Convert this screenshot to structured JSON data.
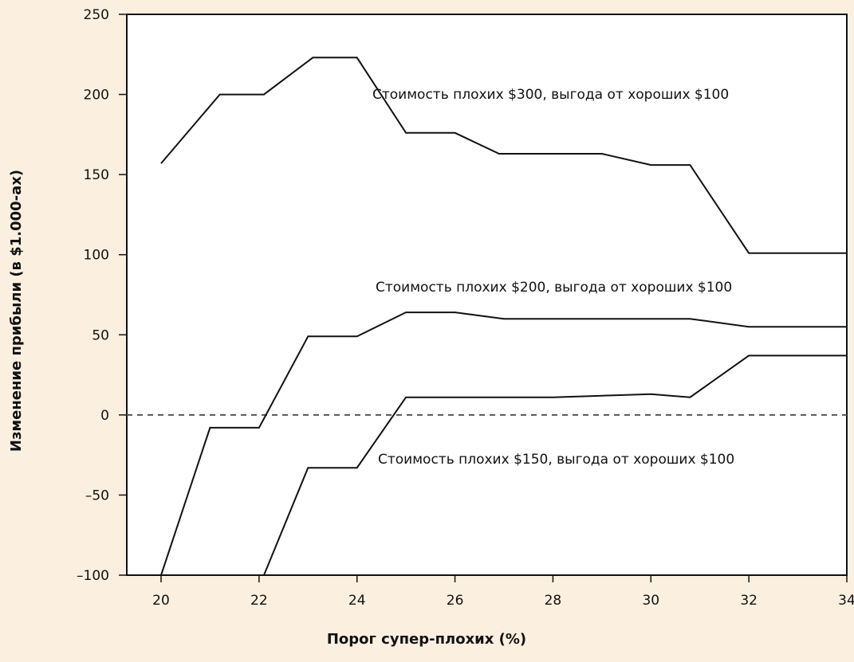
{
  "chart_data": {
    "type": "line",
    "title": "",
    "xlabel": "Порог супер-плохих (%)",
    "ylabel": "Изменение прибыли (в $1.000-ах)",
    "xlim": [
      19.3,
      34
    ],
    "ylim": [
      -100,
      250
    ],
    "xticks": [
      20,
      22,
      24,
      26,
      28,
      30,
      32,
      34
    ],
    "yticks": [
      -100,
      -50,
      0,
      50,
      100,
      150,
      200,
      250
    ],
    "ytick_labels": [
      "–100",
      "–50",
      "0",
      "50",
      "100",
      "150",
      "200",
      "250"
    ],
    "grid": false,
    "legend": "none",
    "reference_line": {
      "y": 0,
      "style": "dashed"
    },
    "colors": {
      "background": "#fbf0e0",
      "plot_background": "#ffffff",
      "line": "#111111",
      "reference": "#555555"
    },
    "series": [
      {
        "name": "Стоимость плохих $300, выгода от хороших $100",
        "x": [
          20,
          21.2,
          22.1,
          23.1,
          24,
          25,
          26,
          26.9,
          28,
          29,
          30,
          30.8,
          32,
          34
        ],
        "y": [
          157,
          200,
          200,
          223,
          223,
          176,
          176,
          163,
          163,
          163,
          156,
          156,
          101,
          101
        ]
      },
      {
        "name": "Стоимость плохих $200, выгода от хороших $100",
        "x": [
          20,
          21.0,
          22.0,
          23.0,
          24.0,
          25.0,
          26.0,
          27.0,
          28,
          29,
          30,
          30.8,
          32,
          34
        ],
        "y": [
          -100,
          -8,
          -8,
          49,
          49,
          64,
          64,
          60,
          60,
          60,
          60,
          60,
          55,
          55
        ]
      },
      {
        "name": "Стоимость плохих $150, выгода от хороших $100",
        "x": [
          22.1,
          23.0,
          24.0,
          25.0,
          26.0,
          27.0,
          28.0,
          29.0,
          30.0,
          30.8,
          32,
          34
        ],
        "y": [
          -100,
          -33,
          -33,
          11,
          11,
          11,
          11,
          12,
          13,
          11,
          37,
          37
        ]
      }
    ]
  }
}
